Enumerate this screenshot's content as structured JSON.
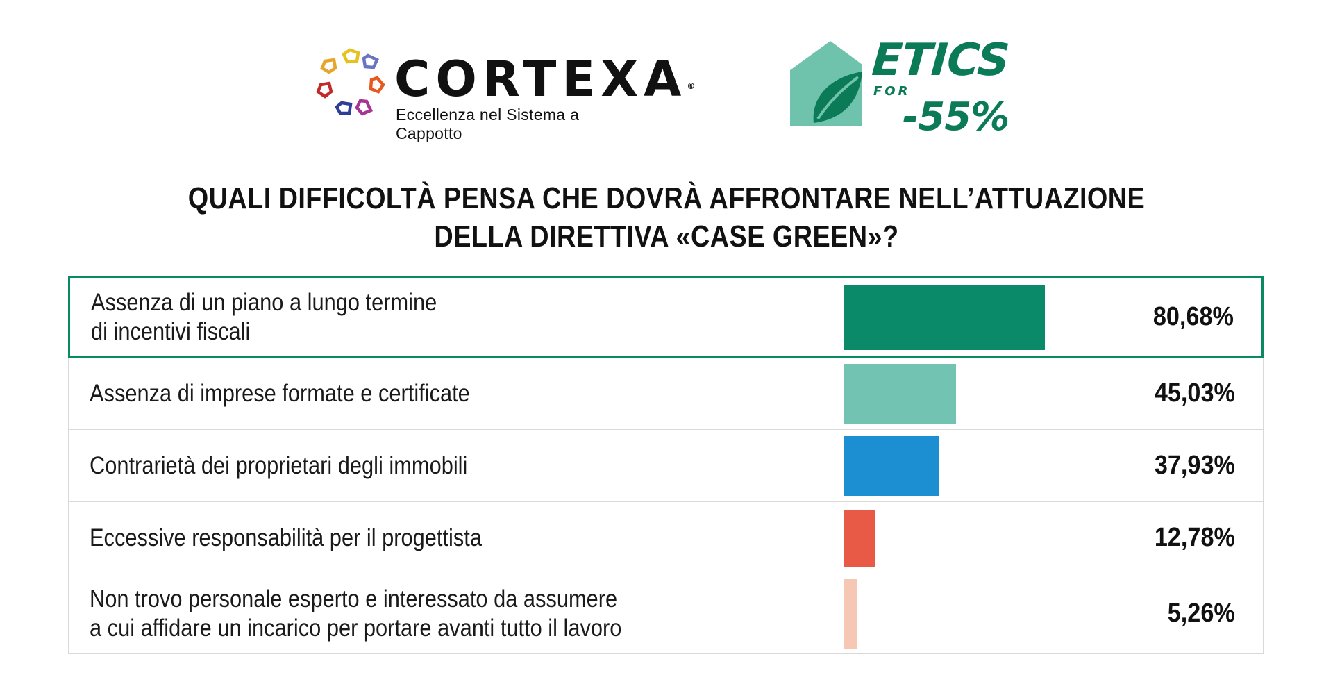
{
  "logos": {
    "cortexa": {
      "name": "CORTEXA",
      "registered": "®",
      "tagline": "Eccellenza nel Sistema a Cappotto"
    },
    "etics": {
      "word": "ETICS",
      "for": "FOR",
      "target": "-55%",
      "color": "#0a7a57",
      "mark_color": "#6fc2ac"
    }
  },
  "chart_data": {
    "type": "bar",
    "orientation": "horizontal",
    "title_lines": [
      "QUALI DIFFICOLTÀ PENSA CHE DOVRÀ AFFRONTARE NELL’ATTUAZIONE",
      "DELLA DIRETTIVA «CASE GREEN»?"
    ],
    "xlim": [
      0,
      100
    ],
    "grid": false,
    "rows": [
      {
        "label_lines": [
          "Assenza di un piano a lungo termine",
          "di incentivi fiscali"
        ],
        "value": 80.68,
        "value_label": "80,68%",
        "color": "#0a8a69",
        "highlighted": true
      },
      {
        "label_lines": [
          "Assenza di imprese formate e certificate"
        ],
        "value": 45.03,
        "value_label": "45,03%",
        "color": "#72c3b2",
        "highlighted": false
      },
      {
        "label_lines": [
          "Contrarietà dei proprietari degli immobili"
        ],
        "value": 37.93,
        "value_label": "37,93%",
        "color": "#1b8fd2",
        "highlighted": false
      },
      {
        "label_lines": [
          "Eccessive responsabilità per il progettista"
        ],
        "value": 12.78,
        "value_label": "12,78%",
        "color": "#e85a45",
        "highlighted": false
      },
      {
        "label_lines": [
          "Non trovo personale esperto e interessato da assumere",
          "a cui affidare un incarico per portare avanti tutto il lavoro"
        ],
        "value": 5.26,
        "value_label": "5,26%",
        "color": "#f6c7b5",
        "highlighted": false
      }
    ]
  }
}
